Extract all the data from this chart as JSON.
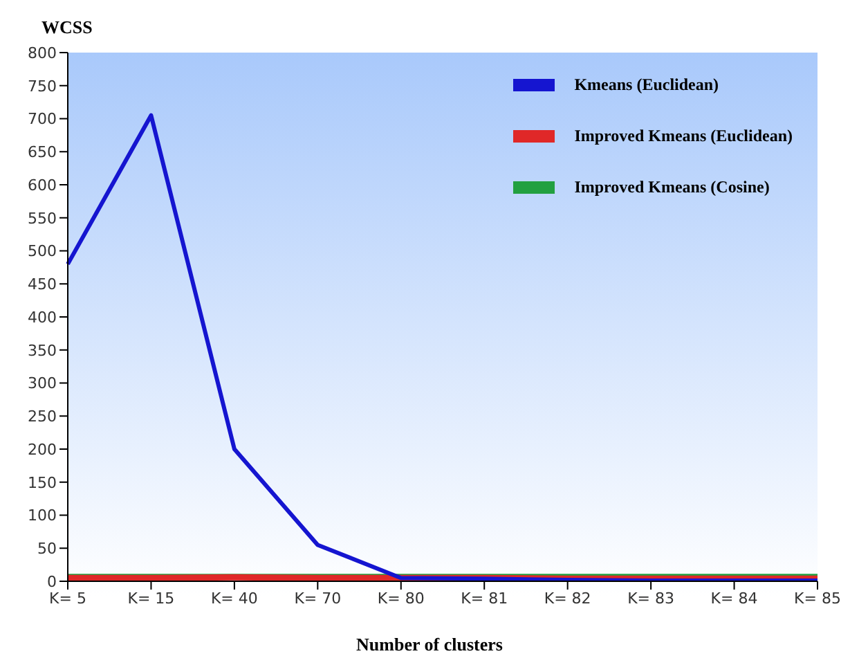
{
  "chart_data": {
    "type": "line",
    "ylabel": "WCSS",
    "xlabel": "Number of clusters",
    "categories": [
      "K= 5",
      "K= 15",
      "K= 40",
      "K= 70",
      "K= 80",
      "K= 81",
      "K= 82",
      "K= 83",
      "K= 84",
      "K= 85"
    ],
    "series": [
      {
        "name": "Kmeans (Euclidean)",
        "color": "#1515d0",
        "values": [
          480,
          705,
          200,
          55,
          5,
          4,
          2,
          1,
          1,
          1
        ]
      },
      {
        "name": "Improved Kmeans (Euclidean)",
        "color": "#e02828",
        "values": [
          5,
          5,
          6,
          5,
          5,
          5,
          4,
          4,
          4,
          4
        ]
      },
      {
        "name": "Improved Kmeans (Cosine)",
        "color": "#22a040",
        "values": [
          8,
          8,
          8,
          8,
          8,
          8,
          8,
          8,
          8,
          8
        ]
      }
    ],
    "ylim": [
      0,
      800
    ],
    "yticks": [
      0,
      50,
      100,
      150,
      200,
      250,
      300,
      350,
      400,
      450,
      500,
      550,
      600,
      650,
      700,
      750,
      800
    ],
    "grid": false,
    "legend": "top right",
    "marker": "none",
    "line_style": "solid"
  }
}
